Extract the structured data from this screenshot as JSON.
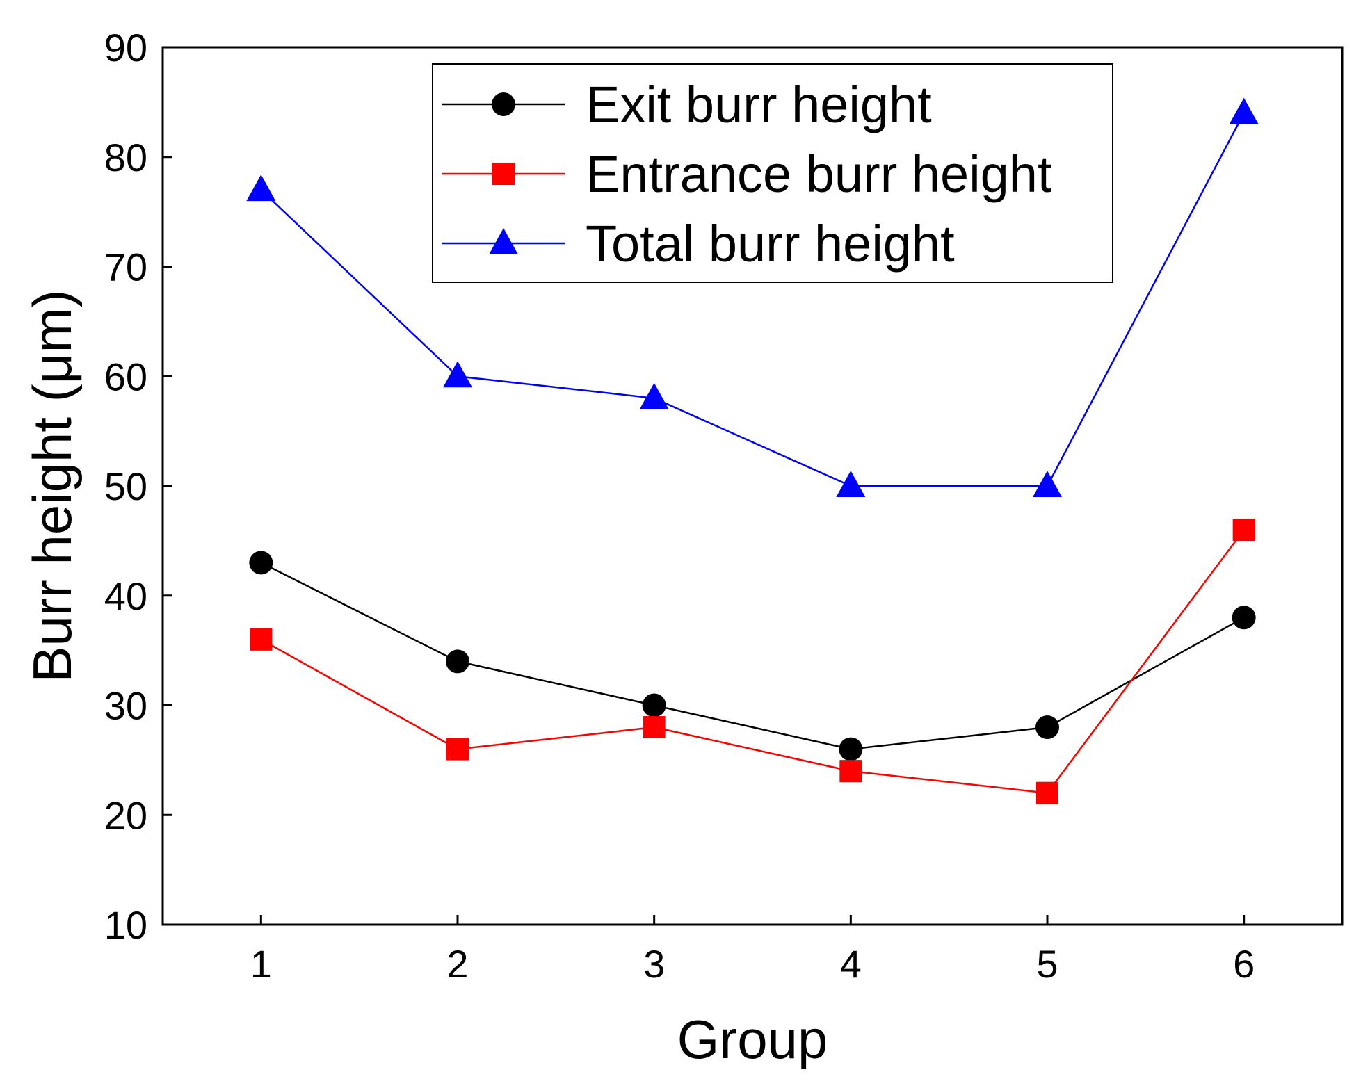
{
  "chart_data": {
    "type": "line",
    "title": "",
    "xlabel": "Group",
    "ylabel": "Burr height (μm)",
    "x": [
      1,
      2,
      3,
      4,
      5,
      6
    ],
    "xticks": [
      "1",
      "2",
      "3",
      "4",
      "5",
      "6"
    ],
    "yticks": [
      "10",
      "20",
      "30",
      "40",
      "50",
      "60",
      "70",
      "80",
      "90"
    ],
    "xlim": [
      0.5,
      6.5
    ],
    "ylim": [
      10,
      90
    ],
    "grid": false,
    "legend_position": "top-center",
    "series": [
      {
        "name": "Exit burr height",
        "values": [
          43,
          34,
          30,
          26,
          28,
          38
        ],
        "color": "#000000",
        "marker": "circle"
      },
      {
        "name": "Entrance burr height",
        "values": [
          36,
          26,
          28,
          24,
          22,
          46
        ],
        "color": "#ff0000",
        "marker": "square"
      },
      {
        "name": "Total burr height",
        "values": [
          77,
          60,
          58,
          50,
          50,
          84
        ],
        "color": "#0000ff",
        "marker": "triangle"
      }
    ]
  }
}
